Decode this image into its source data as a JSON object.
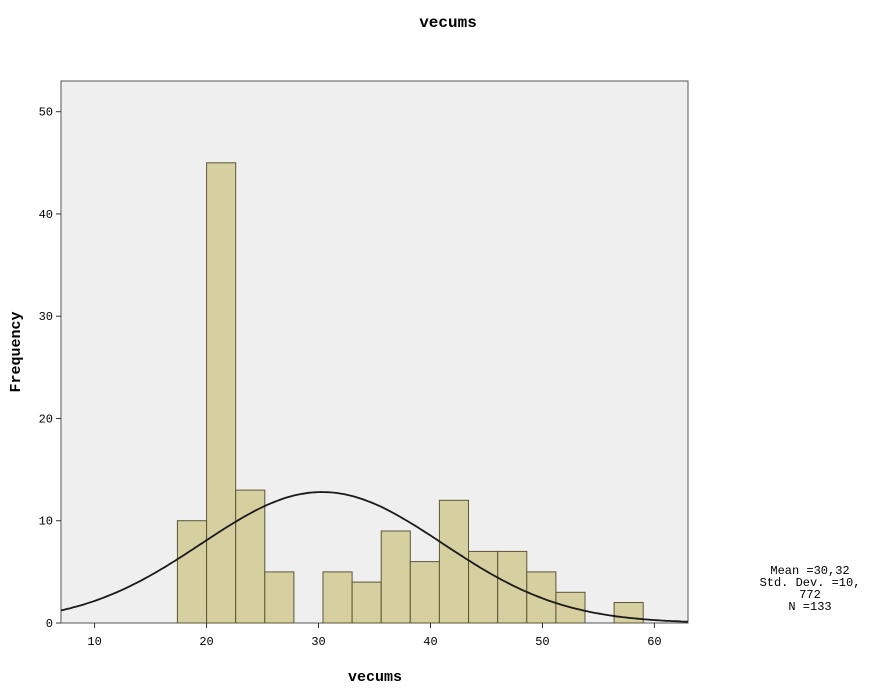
{
  "chart_data": {
    "type": "bar",
    "title": "vecums",
    "xlabel": "vecums",
    "ylabel": "Frequency",
    "xlim": [
      7,
      63
    ],
    "ylim": [
      0,
      53
    ],
    "x_ticks": [
      10,
      20,
      30,
      40,
      50,
      60
    ],
    "y_ticks": [
      0,
      10,
      20,
      30,
      40,
      50
    ],
    "bin_width": 2.6,
    "bins": [
      {
        "start": 17.4,
        "end": 20.0,
        "count": 10
      },
      {
        "start": 20.0,
        "end": 22.6,
        "count": 45
      },
      {
        "start": 22.6,
        "end": 25.2,
        "count": 13
      },
      {
        "start": 25.2,
        "end": 27.8,
        "count": 5
      },
      {
        "start": 27.8,
        "end": 30.4,
        "count": 0
      },
      {
        "start": 30.4,
        "end": 33.0,
        "count": 5
      },
      {
        "start": 33.0,
        "end": 35.6,
        "count": 4
      },
      {
        "start": 35.6,
        "end": 38.2,
        "count": 9
      },
      {
        "start": 38.2,
        "end": 40.8,
        "count": 6
      },
      {
        "start": 40.8,
        "end": 43.4,
        "count": 12
      },
      {
        "start": 43.4,
        "end": 46.0,
        "count": 7
      },
      {
        "start": 46.0,
        "end": 48.6,
        "count": 7
      },
      {
        "start": 48.6,
        "end": 51.2,
        "count": 5
      },
      {
        "start": 51.2,
        "end": 53.8,
        "count": 3
      },
      {
        "start": 53.8,
        "end": 56.4,
        "count": 0
      },
      {
        "start": 56.4,
        "end": 59.0,
        "count": 2
      }
    ],
    "normal_curve": {
      "mean": 30.32,
      "sd": 10.772,
      "n": 133
    },
    "stats_lines": [
      "Mean =30,32",
      "Std. Dev. =10,",
      "772",
      "N =133"
    ],
    "grid": false,
    "colors": {
      "bar_fill": "#d6d0a0",
      "bar_stroke": "#5a5636",
      "plot_bg": "#efefef",
      "curve": "#1a1a1a"
    }
  }
}
